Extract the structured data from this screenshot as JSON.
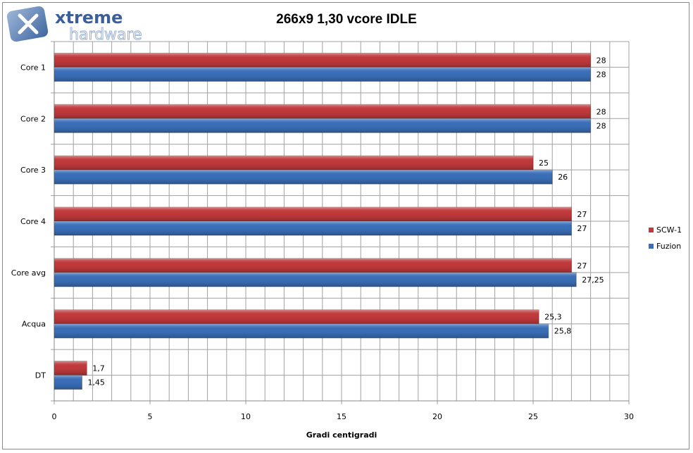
{
  "logo": {
    "line1": "xtreme",
    "line2": "hardware"
  },
  "chart_data": {
    "type": "bar",
    "orientation": "horizontal",
    "title": "266x9 1,30 vcore IDLE",
    "xlabel": "Gradi centigradi",
    "ylabel": "",
    "categories": [
      "Core 1",
      "Core 2",
      "Core 3",
      "Core 4",
      "Core avg",
      "Acqua",
      "DT"
    ],
    "series": [
      {
        "name": "SCW-1",
        "color": "#c0393b",
        "values": [
          28,
          28,
          25,
          27,
          27,
          25.3,
          1.7
        ],
        "labels": [
          "28",
          "28",
          "25",
          "27",
          "27",
          "25,3",
          "1,7"
        ]
      },
      {
        "name": "Fuzion",
        "color": "#3a6fb8",
        "values": [
          28,
          28,
          26,
          27,
          27.25,
          25.8,
          1.45
        ],
        "labels": [
          "28",
          "28",
          "26",
          "27",
          "27,25",
          "25,8",
          "1,45"
        ]
      }
    ],
    "xlim": [
      0,
      30
    ],
    "xticks": [
      "0",
      "5",
      "10",
      "15",
      "20",
      "25",
      "30"
    ],
    "grid": true,
    "legend": "right"
  }
}
